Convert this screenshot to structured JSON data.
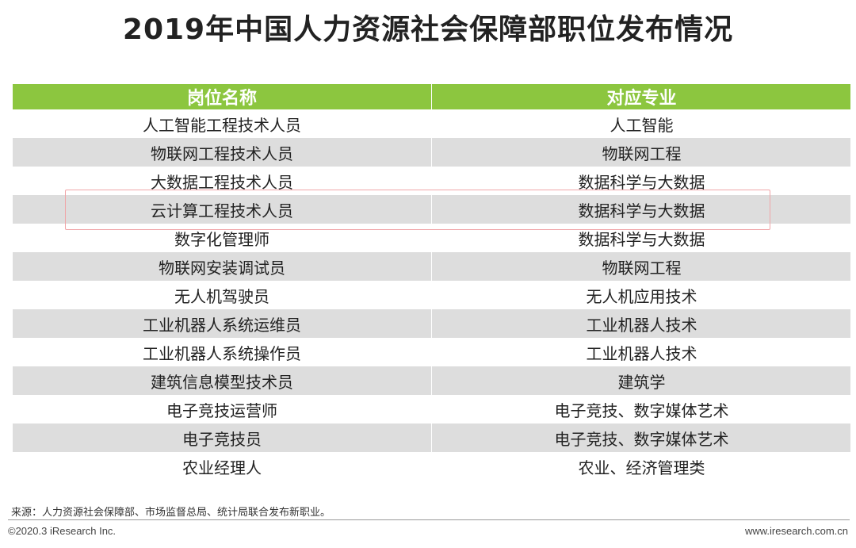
{
  "title": "2019年中国人力资源社会保障部职位发布情况",
  "table": {
    "headers": [
      "岗位名称",
      "对应专业"
    ],
    "rows": [
      [
        "人工智能工程技术人员",
        "人工智能"
      ],
      [
        "物联网工程技术人员",
        "物联网工程"
      ],
      [
        "大数据工程技术人员",
        "数据科学与大数据"
      ],
      [
        "云计算工程技术人员",
        "数据科学与大数据"
      ],
      [
        "数字化管理师",
        "数据科学与大数据"
      ],
      [
        "物联网安装调试员",
        "物联网工程"
      ],
      [
        "无人机驾驶员",
        "无人机应用技术"
      ],
      [
        "工业机器人系统运维员",
        "工业机器人技术"
      ],
      [
        "工业机器人系统操作员",
        "工业机器人技术"
      ],
      [
        "建筑信息模型技术员",
        "建筑学"
      ],
      [
        "电子竞技运营师",
        "电子竞技、数字媒体艺术"
      ],
      [
        "电子竞技员",
        "电子竞技、数字媒体艺术"
      ],
      [
        "农业经理人",
        "农业、经济管理类"
      ]
    ]
  },
  "source": "来源：人力资源社会保障部、市场监督总局、统计局联合发布新职业。",
  "copyright": "©2020.3 iResearch Inc.",
  "website": "www.iresearch.com.cn",
  "colors": {
    "header_green": "#8cc63f",
    "row_shade": "#dddddd",
    "highlight_border": "#f0a5a8"
  }
}
